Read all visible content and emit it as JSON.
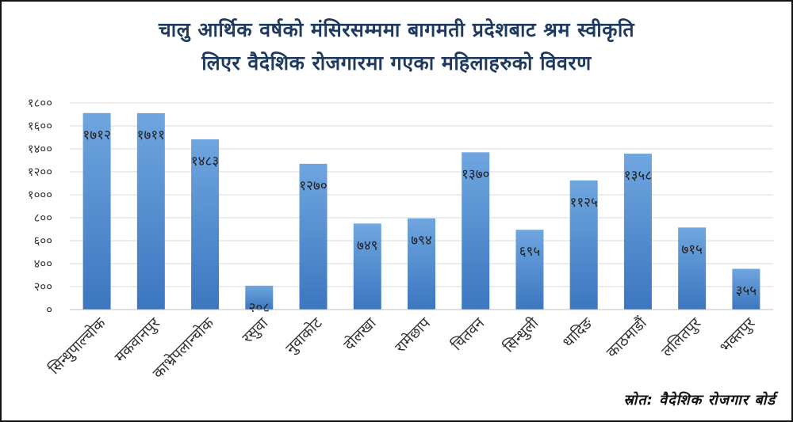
{
  "chart_data": {
    "type": "bar",
    "title_line1": "चालु आर्थिक वर्षको मंसिरसम्ममा बागमती प्रदेशबाट श्रम स्वीकृति",
    "title_line2": "लिएर वैदेशिक रोजगारमा गएका महिलाहरुको विवरण",
    "categories": [
      "सिन्धुपाल्चोक",
      "मकवानपुर",
      "काभ्रेपलान्चोक",
      "रसुवा",
      "नुवाकोट",
      "दोलखा",
      "रामेछाप",
      "चितवन",
      "सिन्धुली",
      "धादिङ",
      "काठमाडौं",
      "ललितपुर",
      "भक्तपुर"
    ],
    "values": [
      1712,
      1711,
      1483,
      208,
      1270,
      749,
      794,
      1370,
      695,
      1125,
      1358,
      715,
      355
    ],
    "data_labels": [
      "१७१२",
      "१७११",
      "१४८३",
      "२०८",
      "१२७०",
      "७४९",
      "७९४",
      "१३७०",
      "६९५",
      "११२५",
      "१३५८",
      "७१५",
      "३५५"
    ],
    "ylim": [
      0,
      1800
    ],
    "yticks": [
      0,
      200,
      400,
      600,
      800,
      1000,
      1200,
      1400,
      1600,
      1800
    ],
    "ytick_labels": [
      "०",
      "२००",
      "४००",
      "६००",
      "८००",
      "१०००",
      "१२००",
      "१४००",
      "१६००",
      "१८००"
    ],
    "grid": true,
    "bar_color_top": "#6fa6e0",
    "bar_color_bottom": "#3c76bf",
    "title_color": "#1f3a5f"
  },
  "source": "स्रोत: वैदेशिक रोजगार बोर्ड"
}
